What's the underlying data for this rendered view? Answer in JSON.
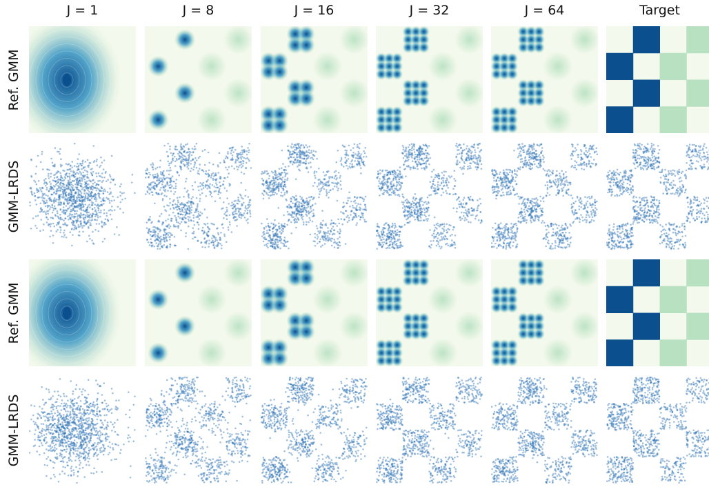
{
  "columns": [
    "J = 1",
    "J = 8",
    "J = 16",
    "J = 32",
    "J = 64",
    "Target"
  ],
  "row_labels": [
    "Ref. GMM",
    "GMM-LRDS",
    "Ref. GMM",
    "GMM-LRDS"
  ],
  "colors": {
    "panel_background": "#f3f9ec",
    "density_high": "#0b4f8f",
    "density_mid": "#4a9fc8",
    "density_low": "#b7e1c0",
    "sample_points": "#2f74b5"
  }
}
